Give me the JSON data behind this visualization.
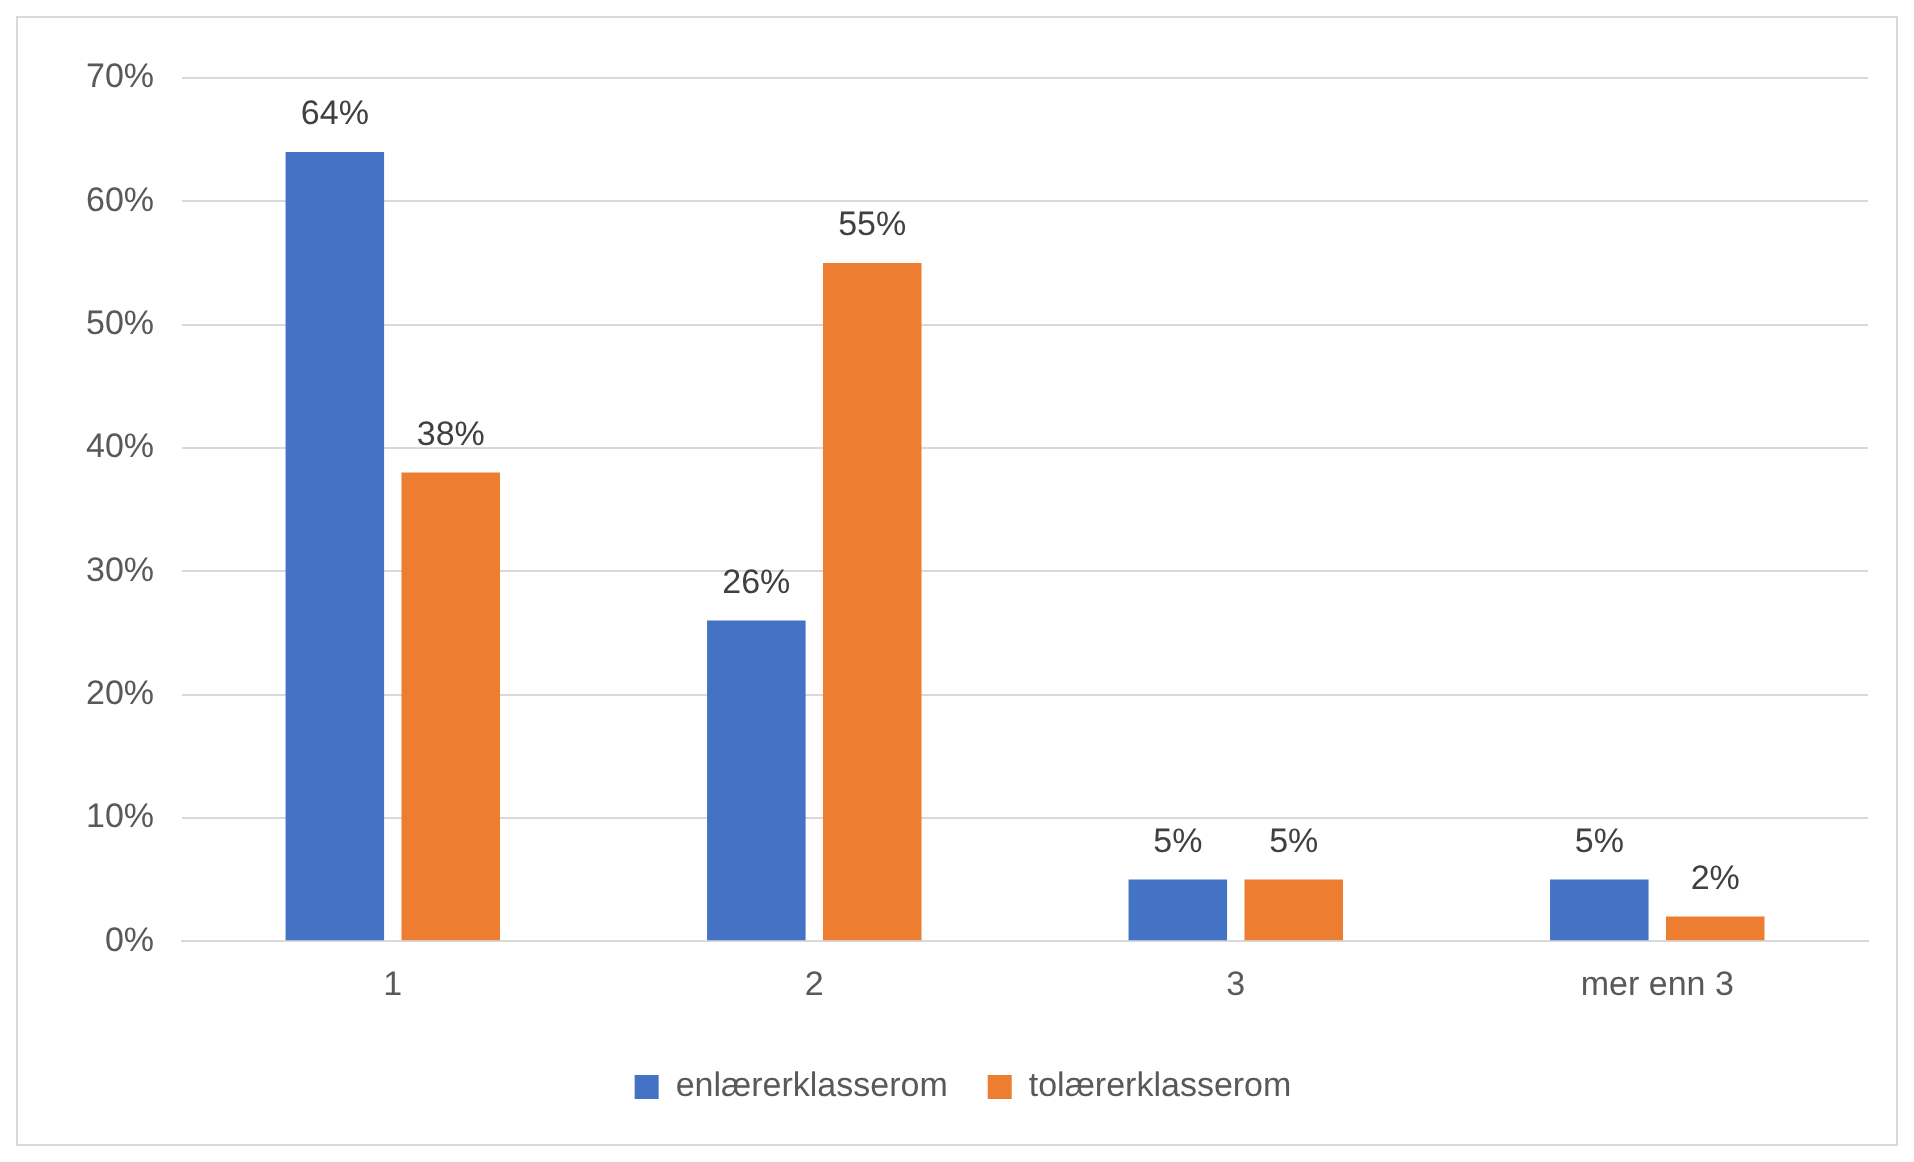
{
  "chart_data": {
    "type": "bar",
    "categories": [
      "1",
      "2",
      "3",
      "mer enn 3"
    ],
    "series": [
      {
        "name": "enlærerklasserom",
        "color": "#4472c4",
        "values": [
          64,
          26,
          5,
          5
        ],
        "value_labels": [
          "64%",
          "26%",
          "5%",
          "5%"
        ]
      },
      {
        "name": "tolærerklasserom",
        "color": "#ed7d31",
        "values": [
          38,
          55,
          5,
          2
        ],
        "value_labels": [
          "38%",
          "55%",
          "5%",
          "2%"
        ]
      }
    ],
    "ylim": [
      0,
      70
    ],
    "yticks": [
      {
        "value": 0,
        "label": "0%"
      },
      {
        "value": 10,
        "label": "10%"
      },
      {
        "value": 20,
        "label": "20%"
      },
      {
        "value": 30,
        "label": "30%"
      },
      {
        "value": 40,
        "label": "40%"
      },
      {
        "value": 50,
        "label": "50%"
      },
      {
        "value": 60,
        "label": "60%"
      },
      {
        "value": 70,
        "label": "70%"
      }
    ],
    "grid": "y",
    "legend": "bottom"
  }
}
